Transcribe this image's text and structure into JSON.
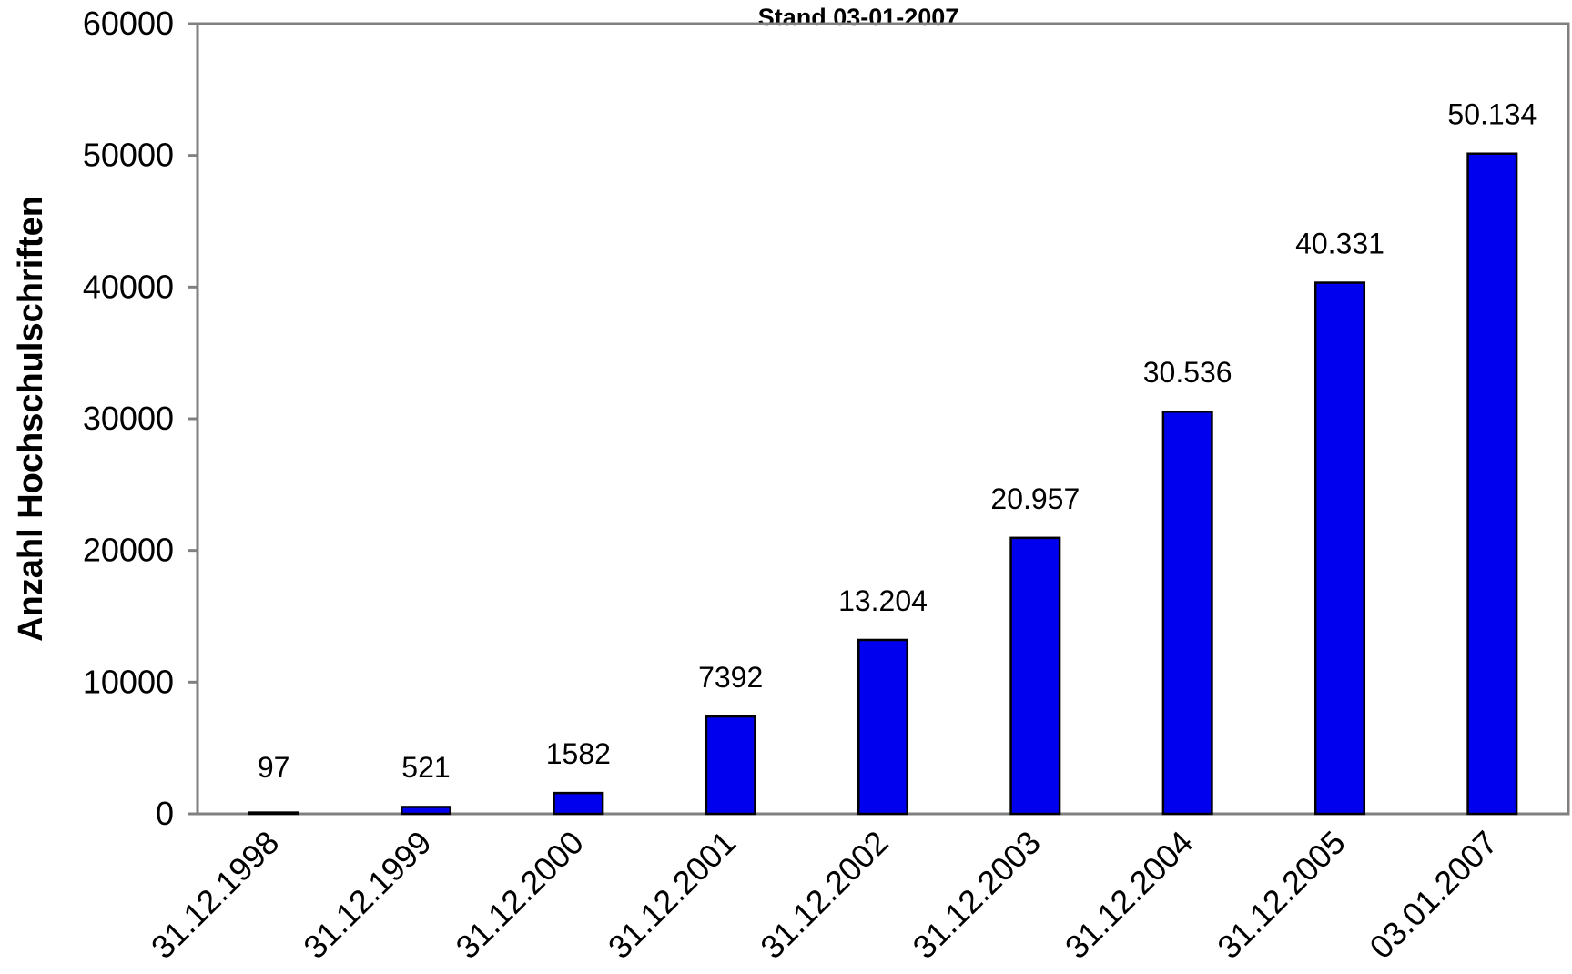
{
  "chart_data": {
    "type": "bar",
    "title": "Stand 03-01-2007",
    "xlabel": "",
    "ylabel": "Anzahl Hochschulschriften",
    "categories": [
      "31.12.1998",
      "31.12.1999",
      "31.12.2000",
      "31.12.2001",
      "31.12.2002",
      "31.12.2003",
      "31.12.2004",
      "31.12.2005",
      "03.01.2007"
    ],
    "values": [
      97,
      521,
      1582,
      7392,
      13204,
      20957,
      30536,
      40331,
      50134
    ],
    "data_labels": [
      "97",
      "521",
      "1582",
      "7392",
      "13.204",
      "20.957",
      "30.536",
      "40.331",
      "50.134"
    ],
    "ylim": [
      0,
      60000
    ],
    "yticks": [
      0,
      10000,
      20000,
      30000,
      40000,
      50000,
      60000
    ],
    "ytick_labels": [
      "0",
      "10000",
      "20000",
      "30000",
      "40000",
      "50000",
      "60000"
    ],
    "grid": false,
    "legend": "none",
    "colors": {
      "bar_fill": "#0000ee",
      "bar_stroke": "#000000",
      "axis": "#808080"
    }
  }
}
